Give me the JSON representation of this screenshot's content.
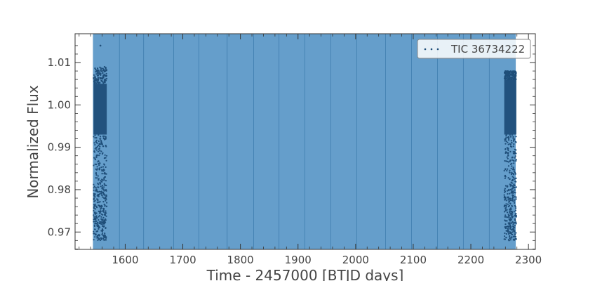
{
  "chart_data": {
    "type": "scatter",
    "title": "",
    "xlabel": "Time - 2457000 [BTJD days]",
    "ylabel": "Normalized Flux",
    "xlim": [
      1513,
      2312
    ],
    "ylim": [
      0.9659,
      1.0168
    ],
    "x_ticks": [
      1600,
      1700,
      1800,
      1900,
      2000,
      2100,
      2200,
      2300
    ],
    "y_ticks": [
      0.97,
      0.98,
      0.99,
      1.0,
      1.01
    ],
    "y_tick_labels": [
      "0.97",
      "0.98",
      "0.99",
      "1.00",
      "1.01"
    ],
    "grid": false,
    "legend_placement": "top-right",
    "shaded_region": {
      "x_start": 1544,
      "x_end": 2278,
      "color": "#3a83bd"
    },
    "sector_boundaries": [
      1590,
      1632,
      1684,
      1728,
      1777,
      1823,
      1867,
      1912,
      1957,
      2002,
      2052,
      2097,
      2142,
      2187,
      2232
    ],
    "series": [
      {
        "name": "TIC 36734222",
        "color": "#1f4e79",
        "segments": [
          {
            "x_start": 1545,
            "x_end": 1568,
            "band_low": 0.993,
            "band_high": 1.005,
            "scatter_low": 0.968,
            "scatter_high": 1.009
          },
          {
            "x_start": 2258,
            "x_end": 2279,
            "band_low": 0.993,
            "band_high": 1.006,
            "scatter_low": 0.968,
            "scatter_high": 1.008
          }
        ],
        "outliers": [
          {
            "x": 1557,
            "y": 1.014
          }
        ]
      }
    ]
  }
}
